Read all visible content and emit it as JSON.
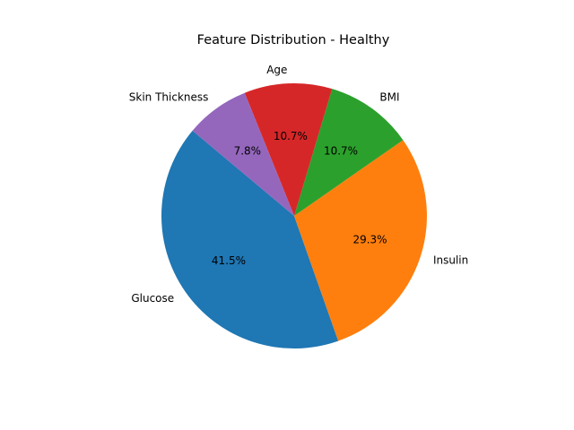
{
  "chart_data": {
    "type": "pie",
    "title": "Feature Distribution - Healthy",
    "categories": [
      "Glucose",
      "Insulin",
      "BMI",
      "Age",
      "Skin Thickness"
    ],
    "values": [
      41.5,
      29.3,
      10.7,
      10.7,
      7.8
    ],
    "value_labels": [
      "41.5%",
      "29.3%",
      "10.7%",
      "10.7%",
      "7.8%"
    ],
    "colors": [
      "#1f77b4",
      "#ff7f0e",
      "#2ca02c",
      "#d62728",
      "#9467bd"
    ],
    "start_angle_deg": 140,
    "direction": "counterclockwise",
    "legend": "none"
  }
}
